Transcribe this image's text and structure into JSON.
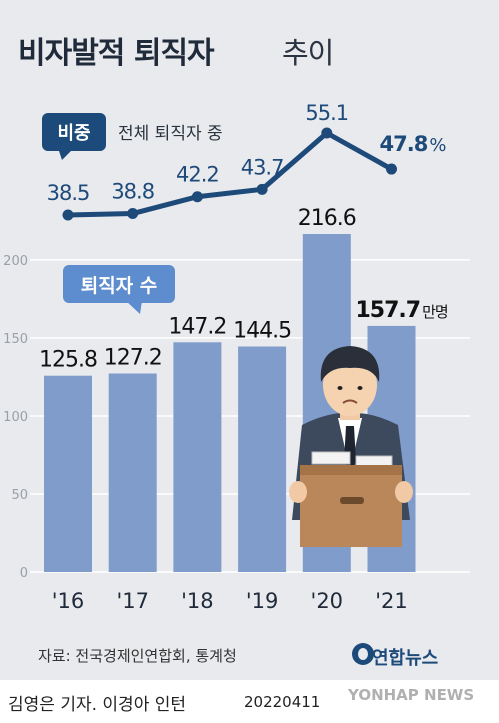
{
  "title": {
    "main": "비자발적 퇴직자",
    "sub": "추이"
  },
  "tags": {
    "share": "비중",
    "share_note": "전체 퇴직자 중",
    "count": "퇴직자 수"
  },
  "chart_data": {
    "type": "bar",
    "categories": [
      "'16",
      "'17",
      "'18",
      "'19",
      "'20",
      "'21"
    ],
    "series": [
      {
        "name": "퇴직자 수",
        "values": [
          125.8,
          127.2,
          147.2,
          144.5,
          216.6,
          157.7
        ],
        "unit": "만명",
        "color": "#7f9ccb"
      },
      {
        "name": "비중",
        "values": [
          38.5,
          38.8,
          42.2,
          43.7,
          55.1,
          47.8
        ],
        "unit": "%",
        "color": "#1e4a7a"
      }
    ],
    "y_ticks": [
      "0",
      "50",
      "100",
      "150",
      "200"
    ],
    "ylim": [
      0,
      216.6
    ],
    "last_label_unit": "만명",
    "last_pct_unit": "%"
  },
  "source": "자료: 전국경제인연합회, 통계청",
  "logo": "연합뉴스",
  "credit": "김영은 기자. 이경아 인턴",
  "date": "20220411",
  "watermark": "YONHAP NEWS"
}
